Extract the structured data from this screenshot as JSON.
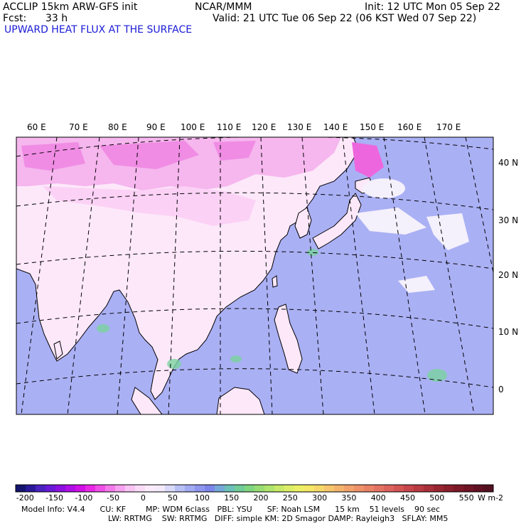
{
  "header": {
    "model": "ACCLIP 15km ARW-GFS init",
    "center": "NCAR/MMM",
    "init": "Init: 12 UTC Mon 05 Sep 22",
    "fcst_label": "Fcst:",
    "fcst_value": "33 h",
    "valid": "Valid: 21 UTC Tue 06 Sep 22 (06 KST Wed 07 Sep 22)",
    "field": "UPWARD HEAT FLUX AT THE SURFACE"
  },
  "map": {
    "lon_labels": [
      "60 E",
      "70 E",
      "80 E",
      "90 E",
      "100 E",
      "110 E",
      "120 E",
      "130 E",
      "140 E",
      "150 E",
      "160 E",
      "170 E"
    ],
    "lat_labels": [
      "40 N",
      "30 N",
      "20 N",
      "10 N",
      "0"
    ],
    "colors": {
      "ocean": "#aab0f4",
      "land": "#fde8fa",
      "land_pink": "#f7b8ee",
      "land_magenta": "#ee66dd",
      "coast": "#000000",
      "grid": "#000000"
    }
  },
  "colorbar": {
    "unit": "W m-2",
    "tick_labels": [
      "-200",
      "-150",
      "-100",
      "-50",
      "0",
      "50",
      "100",
      "150",
      "200",
      "250",
      "300",
      "350",
      "400",
      "450",
      "500",
      "550"
    ],
    "colors": [
      "#14146e",
      "#2a1a9a",
      "#4a22c0",
      "#6a1ad6",
      "#8c10e0",
      "#b00ee6",
      "#d010e6",
      "#e828e4",
      "#f050e8",
      "#f47aec",
      "#f6a2f0",
      "#f8c4f4",
      "#fadcf8",
      "#fcecfb",
      "#f4eafc",
      "#d8daf8",
      "#b8c0f6",
      "#a2aaf2",
      "#8e96ee",
      "#7c86ea",
      "#74a8d8",
      "#6cc0b8",
      "#70cc98",
      "#80d680",
      "#98dc74",
      "#b0e46c",
      "#c8ea68",
      "#dcee66",
      "#ecf064",
      "#f4e866",
      "#f6d86a",
      "#f6c66c",
      "#f4b46e",
      "#f2a26c",
      "#ee926a",
      "#ea8266",
      "#e47262",
      "#dc625c",
      "#d25454",
      "#c6464c",
      "#b83a42",
      "#a8303a",
      "#982632",
      "#8a1e2c",
      "#7c1828",
      "#6e1424",
      "#601022",
      "#521020"
    ]
  },
  "footer": {
    "line1": "Model Info: V4.4      CU: KF        MP: WDM 6class   PBL: YSU      SF: Noah LSM      15 km    51 levels    90 sec",
    "line2": "LW: RRTMG    SW: RRTMG   DIFF: simple KM: 2D Smagor DAMP: Rayleigh3   SFLAY: MM5"
  }
}
